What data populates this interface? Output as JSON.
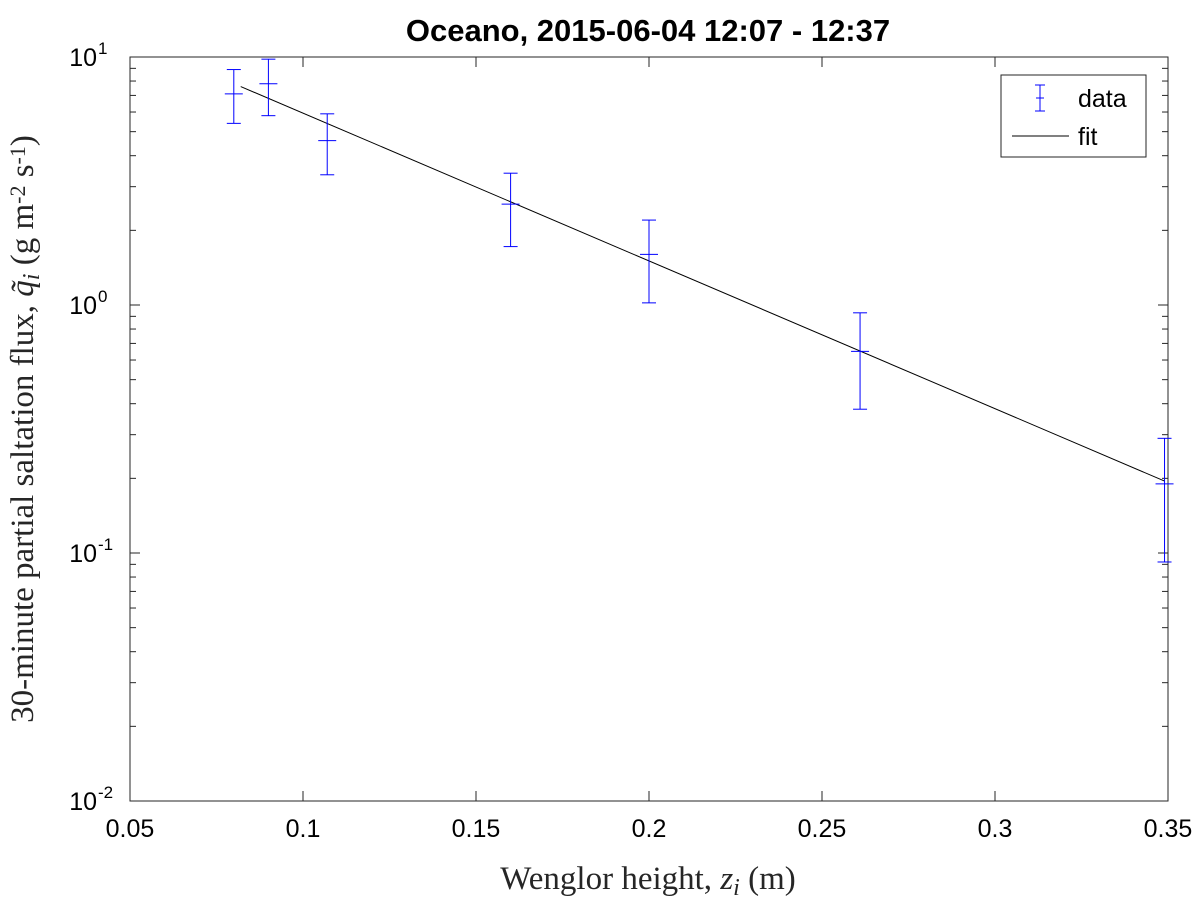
{
  "chart_data": {
    "type": "scatter",
    "title": "Oceano, 2015-06-04 12:07 - 12:37",
    "xlabel": "Wenglor height, z_i (m)",
    "ylabel": "30-minute partial saltation flux, q̃_i (g m^-2 s^-1)",
    "xlim": [
      0.05,
      0.35
    ],
    "ylim": [
      0.01,
      10
    ],
    "yscale": "log",
    "grid": false,
    "legend_position": "top-right",
    "x_ticks": [
      "0.05",
      "0.1",
      "0.15",
      "0.2",
      "0.25",
      "0.3",
      "0.35"
    ],
    "y_ticks": [
      {
        "base": "10",
        "exp": "-2"
      },
      {
        "base": "10",
        "exp": "-1"
      },
      {
        "base": "10",
        "exp": "0"
      },
      {
        "base": "10",
        "exp": "1"
      }
    ],
    "series": [
      {
        "name": "data",
        "color": "#0000ff",
        "style": "errorbar",
        "x": [
          0.08,
          0.09,
          0.107,
          0.16,
          0.2,
          0.261,
          0.349
        ],
        "y": [
          7.1,
          7.8,
          4.6,
          2.55,
          1.6,
          0.65,
          0.19
        ],
        "yerr_low": [
          5.4,
          5.8,
          3.35,
          1.72,
          1.02,
          0.38,
          0.092
        ],
        "yerr_high": [
          8.9,
          9.8,
          5.9,
          3.4,
          2.2,
          0.93,
          0.29
        ]
      },
      {
        "name": "fit",
        "color": "#000000",
        "style": "line",
        "x": [
          0.082,
          0.349
        ],
        "y": [
          7.6,
          0.195
        ]
      }
    ]
  }
}
